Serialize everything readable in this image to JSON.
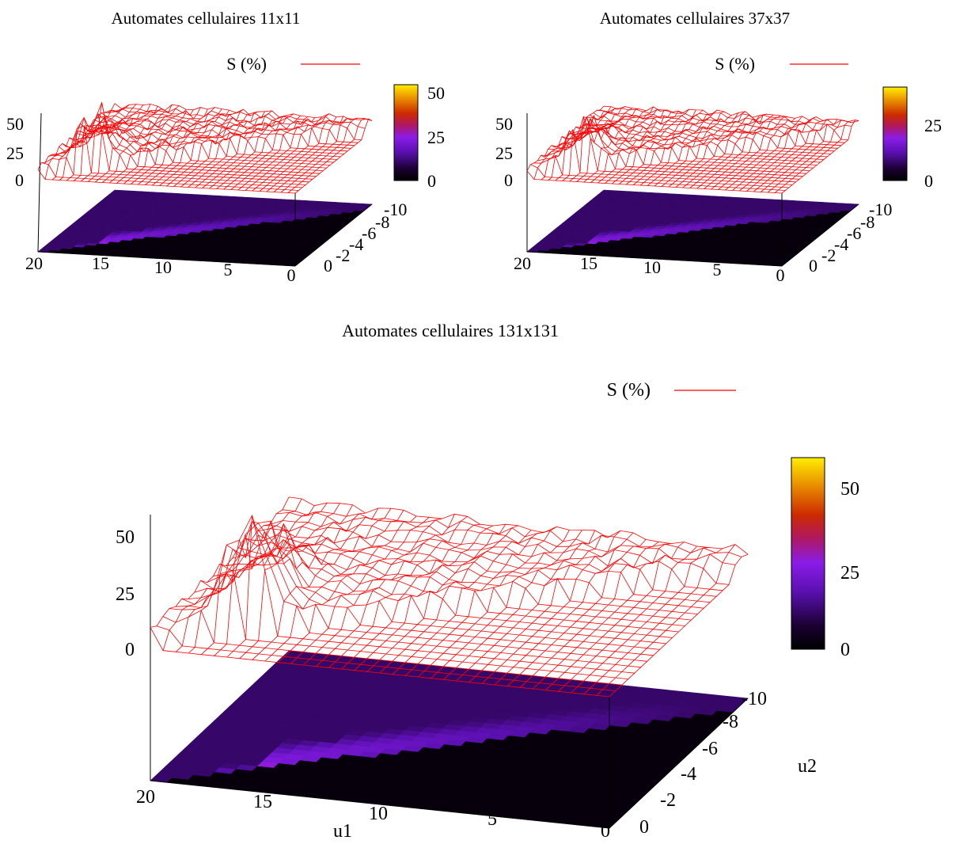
{
  "figure": {
    "series_label": "S (%)",
    "series_color": "#ff0000",
    "colormap": "gnuplot-pm3d (black-purple-red-orange-yellow)"
  },
  "chart_data": [
    {
      "type": "surface3d",
      "title": "Automates cellulaires 11x11",
      "xlabel": "",
      "ylabel": "",
      "zlabel": "",
      "legend": "S (%)",
      "legend_position": "top-right",
      "x_axis": {
        "range": [
          0,
          20
        ],
        "ticks": [
          "20",
          "15",
          "10",
          "5",
          "0"
        ]
      },
      "y_axis": {
        "range": [
          0,
          -10
        ],
        "ticks": [
          "0",
          "-2",
          "-4",
          "-6",
          "-8",
          "-10"
        ]
      },
      "z_axis": {
        "range": [
          0,
          60
        ],
        "ticks": [
          "0",
          "25",
          "50"
        ]
      },
      "colorbar": {
        "range": [
          0,
          60
        ],
        "ticks": [
          "0",
          "25",
          "50"
        ]
      },
      "peak": {
        "u1": 17,
        "u2": -1,
        "S": 58
      },
      "plateau_S": 10
    },
    {
      "type": "surface3d",
      "title": "Automates cellulaires 37x37",
      "xlabel": "",
      "ylabel": "",
      "zlabel": "",
      "legend": "S (%)",
      "legend_position": "top-right",
      "x_axis": {
        "range": [
          0,
          20
        ],
        "ticks": [
          "20",
          "15",
          "10",
          "5",
          "0"
        ]
      },
      "y_axis": {
        "range": [
          0,
          -10
        ],
        "ticks": [
          "0",
          "-2",
          "-4",
          "-6",
          "-8",
          "-10"
        ]
      },
      "z_axis": {
        "range": [
          0,
          60
        ],
        "ticks": [
          "0",
          "25",
          "50"
        ]
      },
      "colorbar": {
        "range": [
          0,
          45
        ],
        "ticks": [
          "0",
          "25"
        ]
      },
      "peak": {
        "u1": 17,
        "u2": -1,
        "S": 50
      },
      "plateau_S": 9
    },
    {
      "type": "surface3d",
      "title": "Automates cellulaires 131x131",
      "xlabel": "u1",
      "ylabel": "u2",
      "zlabel": "",
      "legend": "S (%)",
      "legend_position": "top-right",
      "x_axis": {
        "range": [
          0,
          20
        ],
        "ticks": [
          "20",
          "15",
          "10",
          "5",
          "0"
        ]
      },
      "y_axis": {
        "range": [
          0,
          -10
        ],
        "ticks": [
          "0",
          "-2",
          "-4",
          "-6",
          "-8",
          "-10"
        ]
      },
      "z_axis": {
        "range": [
          0,
          60
        ],
        "ticks": [
          "0",
          "25",
          "50"
        ]
      },
      "colorbar": {
        "range": [
          0,
          60
        ],
        "ticks": [
          "0",
          "25",
          "50"
        ]
      },
      "peak": {
        "u1": 17,
        "u2": -1,
        "S": 60
      },
      "plateau_S": 8
    }
  ]
}
